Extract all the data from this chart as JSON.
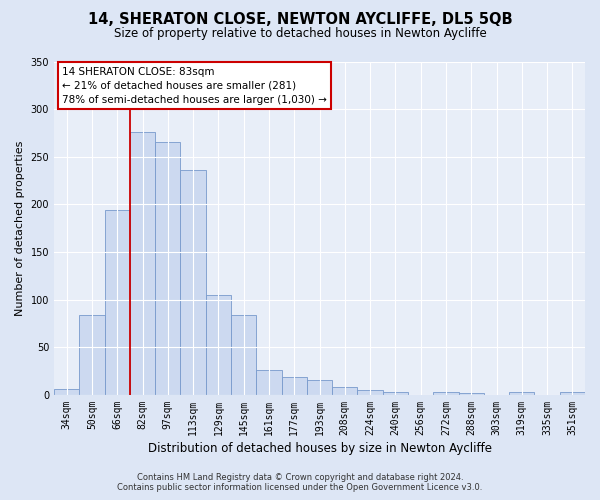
{
  "title": "14, SHERATON CLOSE, NEWTON AYCLIFFE, DL5 5QB",
  "subtitle": "Size of property relative to detached houses in Newton Aycliffe",
  "xlabel": "Distribution of detached houses by size in Newton Aycliffe",
  "ylabel": "Number of detached properties",
  "categories": [
    "34sqm",
    "50sqm",
    "66sqm",
    "82sqm",
    "97sqm",
    "113sqm",
    "129sqm",
    "145sqm",
    "161sqm",
    "177sqm",
    "193sqm",
    "208sqm",
    "224sqm",
    "240sqm",
    "256sqm",
    "272sqm",
    "288sqm",
    "303sqm",
    "319sqm",
    "335sqm",
    "351sqm"
  ],
  "bar_heights": [
    6,
    84,
    194,
    276,
    265,
    236,
    105,
    84,
    26,
    19,
    16,
    8,
    5,
    3,
    0,
    3,
    2,
    0,
    3,
    0,
    3
  ],
  "bar_color": "#ccd9f0",
  "bar_edge_color": "#7799cc",
  "vline_x": 3,
  "vline_color": "#cc0000",
  "ylim": [
    0,
    350
  ],
  "yticks": [
    0,
    50,
    100,
    150,
    200,
    250,
    300,
    350
  ],
  "annotation_title": "14 SHERATON CLOSE: 83sqm",
  "annotation_line1": "← 21% of detached houses are smaller (281)",
  "annotation_line2": "78% of semi-detached houses are larger (1,030) →",
  "annotation_box_color": "#ffffff",
  "annotation_box_edge": "#cc0000",
  "footer_line1": "Contains HM Land Registry data © Crown copyright and database right 2024.",
  "footer_line2": "Contains public sector information licensed under the Open Government Licence v3.0.",
  "bg_color": "#dde6f5",
  "plot_bg_color": "#e8eef8",
  "grid_color": "#ffffff",
  "title_fontsize": 10.5,
  "subtitle_fontsize": 8.5,
  "xlabel_fontsize": 8.5,
  "ylabel_fontsize": 8,
  "tick_fontsize": 7,
  "annot_fontsize": 7.5,
  "footer_fontsize": 6
}
